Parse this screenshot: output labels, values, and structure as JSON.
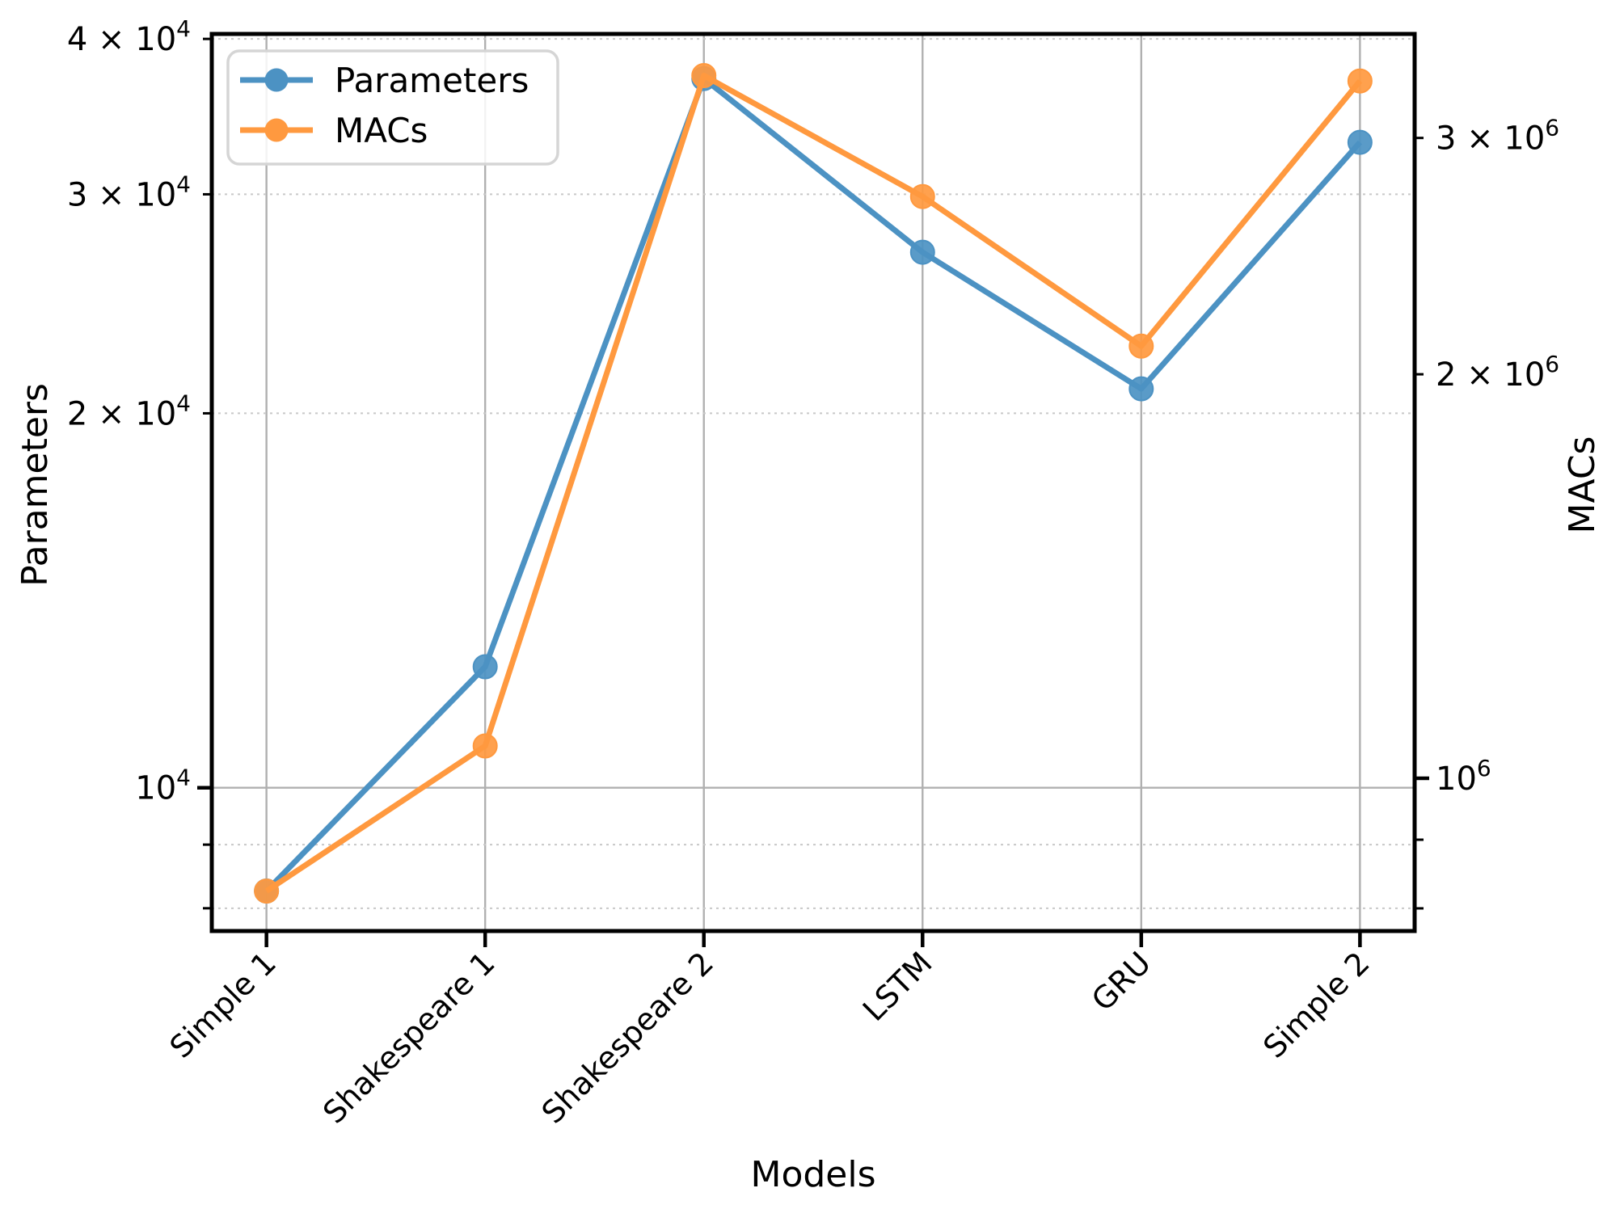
{
  "chart_data": {
    "type": "line",
    "title": "",
    "xlabel": "Models",
    "ylabel_left": "Parameters",
    "ylabel_right": "MACs",
    "categories": [
      "Simple 1",
      "Shakespeare 1",
      "Shakespeare 2",
      "LSTM",
      "GRU",
      "Simple 2"
    ],
    "series": [
      {
        "name": "Parameters",
        "axis": "left",
        "color": "#4C92C3",
        "values": [
          8260,
          12510,
          37170,
          26950,
          20930,
          33030
        ]
      },
      {
        "name": "MACs",
        "axis": "right",
        "color": "#FF993F",
        "values": [
          824000,
          1057000,
          3339000,
          2713000,
          2099000,
          3308000
        ]
      }
    ],
    "left_axis": {
      "scale": "log",
      "ylim": [
        7670,
        40370
      ],
      "ticks": [
        {
          "v": 10000,
          "label": "10",
          "exp": "4",
          "major": true
        },
        {
          "v": 20000,
          "label": "2 × 10",
          "exp": "4",
          "major": false
        },
        {
          "v": 30000,
          "label": "3 × 10",
          "exp": "4",
          "major": false
        },
        {
          "v": 40000,
          "label": "4 × 10",
          "exp": "4",
          "major": false
        }
      ],
      "minor_unlabeled": [
        8000,
        9000
      ]
    },
    "right_axis": {
      "scale": "log",
      "ylim": [
        769500,
        3586000
      ],
      "ticks": [
        {
          "v": 1000000,
          "label": "10",
          "exp": "6",
          "major": true
        },
        {
          "v": 2000000,
          "label": "2 × 10",
          "exp": "6",
          "major": false
        },
        {
          "v": 3000000,
          "label": "3 × 10",
          "exp": "6",
          "major": false
        }
      ],
      "minor_unlabeled": [
        800000,
        900000
      ]
    },
    "legend": {
      "position": "upper left",
      "entries": [
        "Parameters",
        "MACs"
      ]
    },
    "grid": {
      "vertical": true,
      "horizontal_major": "solid",
      "horizontal_minor": "dashed"
    },
    "colors": {
      "grid_major": "#B0B0B0",
      "grid_minor": "#C8C8C8",
      "spine": "#000000",
      "legend_border": "#D5D5D5"
    }
  }
}
